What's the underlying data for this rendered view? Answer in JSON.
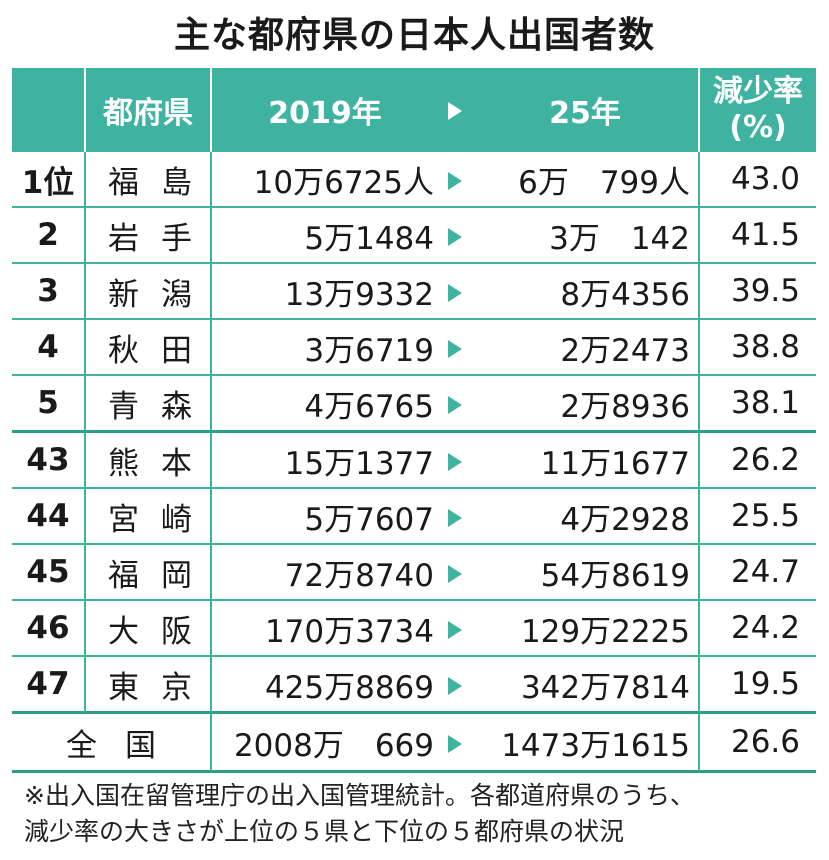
{
  "title": "主な都府県の日本人出国者数",
  "header": {
    "prefecture": "都府県",
    "y2019": "2019年",
    "y2025": "25年",
    "rate_line1": "減少率",
    "rate_line2": "(%)"
  },
  "rows": [
    {
      "rank": "1位",
      "pref": "福島",
      "y2019": "10万6725人",
      "y2025": "6万　799人",
      "rate": "43.0"
    },
    {
      "rank": "2",
      "pref": "岩手",
      "y2019": "5万1484",
      "y2025": "3万　142",
      "rate": "41.5"
    },
    {
      "rank": "3",
      "pref": "新潟",
      "y2019": "13万9332",
      "y2025": "8万4356",
      "rate": "39.5"
    },
    {
      "rank": "4",
      "pref": "秋田",
      "y2019": "3万6719",
      "y2025": "2万2473",
      "rate": "38.8"
    },
    {
      "rank": "5",
      "pref": "青森",
      "y2019": "4万6765",
      "y2025": "2万8936",
      "rate": "38.1"
    },
    {
      "rank": "43",
      "pref": "熊本",
      "y2019": "15万1377",
      "y2025": "11万1677",
      "rate": "26.2"
    },
    {
      "rank": "44",
      "pref": "宮崎",
      "y2019": "5万7607",
      "y2025": "4万2928",
      "rate": "25.5"
    },
    {
      "rank": "45",
      "pref": "福岡",
      "y2019": "72万8740",
      "y2025": "54万8619",
      "rate": "24.7"
    },
    {
      "rank": "46",
      "pref": "大阪",
      "y2019": "170万3734",
      "y2025": "129万2225",
      "rate": "24.2"
    },
    {
      "rank": "47",
      "pref": "東京",
      "y2019": "425万8869",
      "y2025": "342万7814",
      "rate": "19.5"
    }
  ],
  "total": {
    "label": "全国",
    "y2019": "2008万　669",
    "y2025": "1473万1615",
    "rate": "26.6"
  },
  "note_line1": "※出入国在留管理庁の出入国管理統計。各都道府県のうち、",
  "note_line2": "減少率の大きさが上位の５県と下位の５都府県の状況",
  "colors": {
    "accent": "#3fb3a0",
    "text": "#1a1a1a",
    "background": "#ffffff"
  },
  "icons": {
    "arrow": "triangle-right-icon"
  }
}
